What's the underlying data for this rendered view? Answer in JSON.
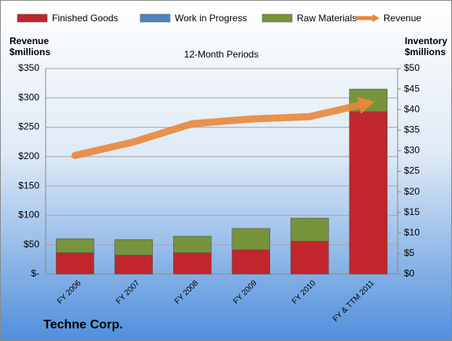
{
  "chart_data": {
    "type": "bar_line",
    "title": "12-Month Periods",
    "y_label": [
      "Revenue",
      "$millions"
    ],
    "y2_label": [
      "Inventory",
      "$millions"
    ],
    "footer": "Techne Corp.",
    "categories": [
      "FY 2006",
      "FY 2007",
      "FY 2008",
      "FY 2009",
      "FY 2010",
      "FY & TTM 2011"
    ],
    "series": [
      {
        "name": "Finished Goods",
        "color": "#c0262b",
        "axis": "y2",
        "values": [
          5.2,
          4.6,
          5.2,
          5.9,
          8.0,
          39.5
        ]
      },
      {
        "name": "Work in Progress",
        "color": "#4f81bd",
        "axis": "y2",
        "values": [
          0,
          0,
          0,
          0,
          0,
          0
        ]
      },
      {
        "name": "Raw Materials",
        "color": "#77933c",
        "axis": "y2",
        "values": [
          3.4,
          3.8,
          4.0,
          5.2,
          5.6,
          5.5
        ]
      },
      {
        "name": "Revenue",
        "color": "#e8873a",
        "type": "line",
        "values": [
          202,
          225,
          256,
          264,
          268,
          291
        ]
      }
    ],
    "ylim": [
      0,
      350
    ],
    "yticks": [
      {
        "value": 0,
        "label": "$-"
      },
      {
        "value": 50,
        "label": "$50"
      },
      {
        "value": 100,
        "label": "$100"
      },
      {
        "value": 150,
        "label": "$150"
      },
      {
        "value": 200,
        "label": "$200"
      },
      {
        "value": 250,
        "label": "$250"
      },
      {
        "value": 300,
        "label": "$300"
      },
      {
        "value": 350,
        "label": "$350"
      }
    ],
    "y2lim": [
      0,
      50
    ],
    "y2ticks": [
      {
        "value": 0,
        "label": "$0"
      },
      {
        "value": 5,
        "label": "$5"
      },
      {
        "value": 10,
        "label": "$10"
      },
      {
        "value": 15,
        "label": "$15"
      },
      {
        "value": 20,
        "label": "$20"
      },
      {
        "value": 25,
        "label": "$25"
      },
      {
        "value": 30,
        "label": "$30"
      },
      {
        "value": 35,
        "label": "$35"
      },
      {
        "value": 40,
        "label": "$40"
      },
      {
        "value": 45,
        "label": "$45"
      },
      {
        "value": 50,
        "label": "$50"
      }
    ],
    "grid": true
  }
}
